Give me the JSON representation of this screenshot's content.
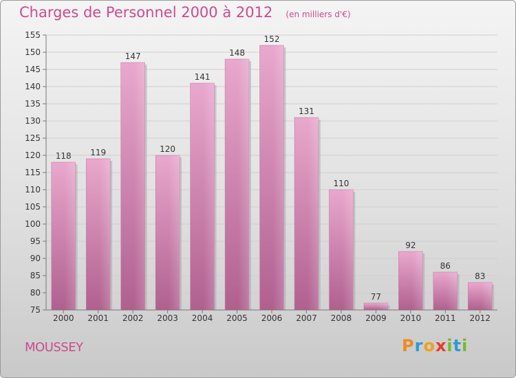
{
  "header": {
    "title": "Charges de Personnel 2000 à 2012",
    "subtitle": "(en milliers d'€)"
  },
  "footer": {
    "commune": "MOUSSEY",
    "logo_letters": [
      {
        "ch": "P",
        "color": "#f08a1c"
      },
      {
        "ch": "r",
        "color": "#2c9ad6"
      },
      {
        "ch": "o",
        "color": "#f0a01c"
      },
      {
        "ch": "x",
        "color": "#e83a2a"
      },
      {
        "ch": "i",
        "color": "#7ab82a"
      },
      {
        "ch": "t",
        "color": "#2c9ad6"
      },
      {
        "ch": "i",
        "color": "#7ab82a"
      }
    ]
  },
  "chart_data": {
    "type": "bar",
    "title": "Charges de Personnel 2000 à 2012",
    "subtitle": "(en milliers d'€)",
    "categories": [
      "2000",
      "2001",
      "2002",
      "2003",
      "2004",
      "2005",
      "2006",
      "2007",
      "2008",
      "2009",
      "2010",
      "2011",
      "2012"
    ],
    "values": [
      118,
      119,
      147,
      120,
      141,
      148,
      152,
      131,
      110,
      77,
      92,
      86,
      83
    ],
    "ylim": [
      75,
      155
    ],
    "yticks": [
      75,
      80,
      85,
      90,
      95,
      100,
      105,
      110,
      115,
      120,
      125,
      130,
      135,
      140,
      145,
      150,
      155
    ],
    "grid": true,
    "bar_color": "#d885b5"
  }
}
